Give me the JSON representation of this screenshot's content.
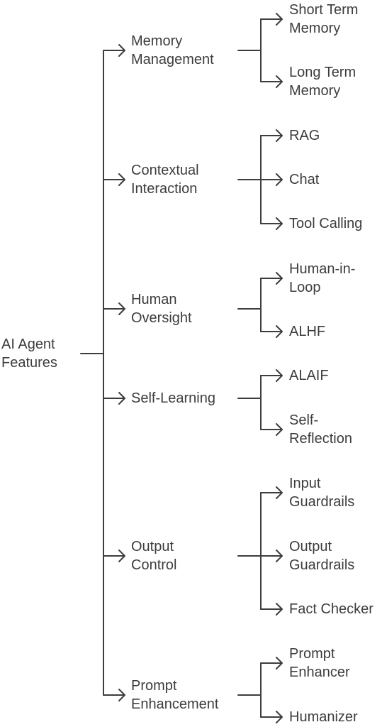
{
  "colors": {
    "line": "#3d3d3d",
    "text": "#3d3d3d",
    "background": "#ffffff"
  },
  "root": {
    "label_lines": [
      "AI Agent",
      "Features"
    ]
  },
  "categories": [
    {
      "label_lines": [
        "Memory",
        "Management"
      ],
      "children": [
        {
          "label_lines": [
            "Short Term",
            "Memory"
          ]
        },
        {
          "label_lines": [
            "Long Term",
            "Memory"
          ]
        }
      ]
    },
    {
      "label_lines": [
        "Contextual",
        "Interaction"
      ],
      "children": [
        {
          "label_lines": [
            "RAG"
          ]
        },
        {
          "label_lines": [
            "Chat"
          ]
        },
        {
          "label_lines": [
            "Tool Calling"
          ]
        }
      ]
    },
    {
      "label_lines": [
        "Human",
        "Oversight"
      ],
      "children": [
        {
          "label_lines": [
            "Human-in-",
            "Loop"
          ]
        },
        {
          "label_lines": [
            "ALHF"
          ]
        }
      ]
    },
    {
      "label_lines": [
        "Self-Learning"
      ],
      "children": [
        {
          "label_lines": [
            "ALAIF"
          ]
        },
        {
          "label_lines": [
            "Self-",
            "Reflection"
          ]
        }
      ]
    },
    {
      "label_lines": [
        "Output",
        "Control"
      ],
      "children": [
        {
          "label_lines": [
            "Input",
            "Guardrails"
          ]
        },
        {
          "label_lines": [
            "Output",
            "Guardrails"
          ]
        },
        {
          "label_lines": [
            "Fact Checker"
          ]
        }
      ]
    },
    {
      "label_lines": [
        "Prompt",
        "Enhancement"
      ],
      "children": [
        {
          "label_lines": [
            "Prompt",
            "Enhancer"
          ]
        },
        {
          "label_lines": [
            "Humanizer"
          ]
        }
      ]
    }
  ]
}
